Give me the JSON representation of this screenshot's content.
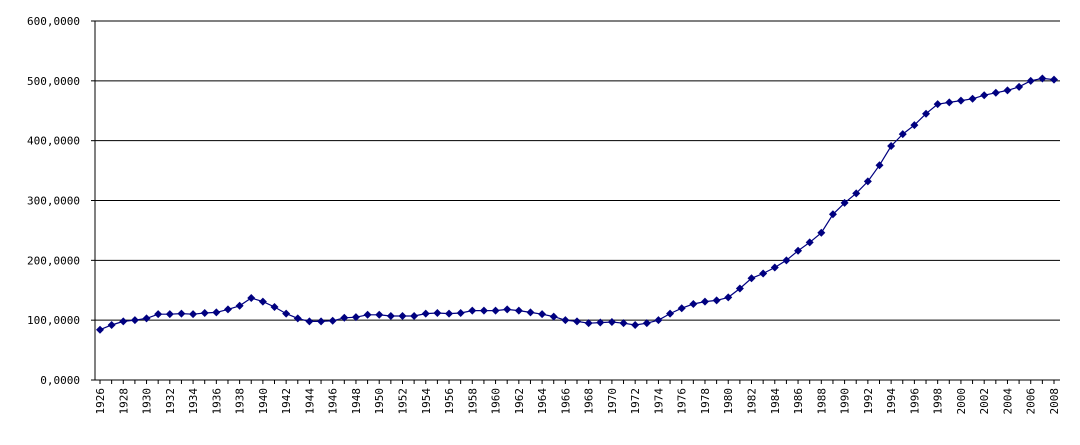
{
  "chart_data": {
    "type": "line",
    "title": "",
    "xlabel": "",
    "ylabel": "",
    "ylim": [
      0,
      600
    ],
    "yticks": [
      "0,0000",
      "100,0000",
      "200,0000",
      "300,0000",
      "400,0000",
      "500,0000",
      "600,0000"
    ],
    "xlim": [
      1926,
      2008
    ],
    "grid": "horizontal",
    "line_color": "#000080",
    "marker": "diamond",
    "series": [
      {
        "x": [
          1926,
          1927,
          1928,
          1929,
          1930,
          1931,
          1932,
          1933,
          1934,
          1935,
          1936,
          1937,
          1938,
          1939,
          1940,
          1941,
          1942,
          1943,
          1944,
          1945,
          1946,
          1947,
          1948,
          1949,
          1950,
          1951,
          1952,
          1953,
          1954,
          1955,
          1956,
          1957,
          1958,
          1959,
          1960,
          1961,
          1962,
          1963,
          1964,
          1965,
          1966,
          1967,
          1968,
          1969,
          1970,
          1971,
          1972,
          1973,
          1974,
          1975,
          1976,
          1977,
          1978,
          1979,
          1980,
          1981,
          1982,
          1983,
          1984,
          1985,
          1986,
          1987,
          1988,
          1989,
          1990,
          1991,
          1992,
          1993,
          1994,
          1995,
          1996,
          1997,
          1998,
          1999,
          2000,
          2001,
          2002,
          2003,
          2004,
          2005,
          2006,
          2007,
          2008
        ],
        "values": [
          84,
          92,
          98,
          100,
          103,
          110,
          110,
          111,
          110,
          112,
          113,
          118,
          124,
          137,
          131,
          122,
          111,
          103,
          98,
          98,
          99,
          104,
          105,
          109,
          109,
          107,
          107,
          107,
          111,
          112,
          111,
          112,
          116,
          116,
          116,
          118,
          116,
          113,
          110,
          106,
          100,
          98,
          95,
          96,
          97,
          95,
          92,
          95,
          100,
          111,
          120,
          127,
          131,
          133,
          138,
          153,
          170,
          178,
          188,
          200,
          216,
          230,
          246,
          277,
          296,
          312,
          332,
          359,
          391,
          411,
          426,
          445,
          461,
          464,
          467,
          470,
          476,
          480,
          484,
          490,
          500,
          504,
          502
        ]
      }
    ]
  }
}
